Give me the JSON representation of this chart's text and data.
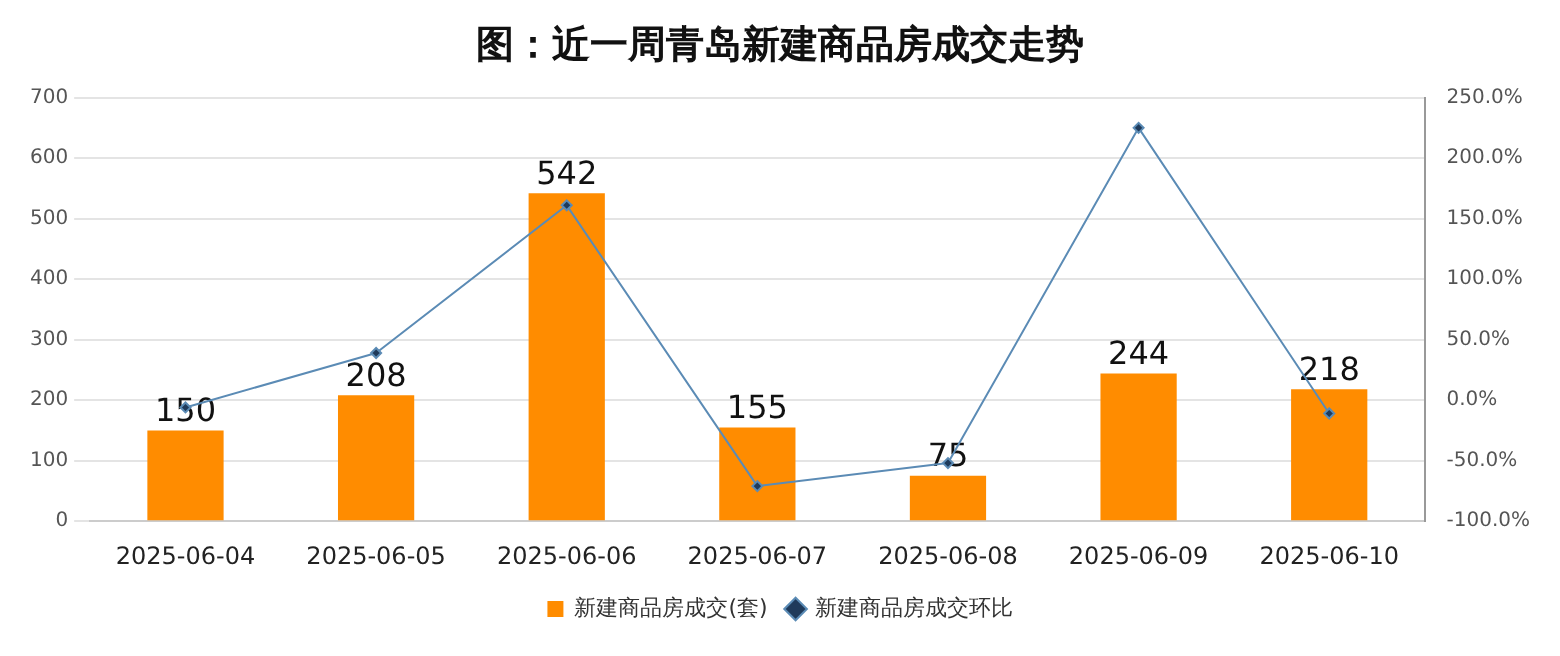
{
  "chart_data": {
    "type": "bar",
    "title": "图：近一周青岛新建商品房成交走势",
    "categories": [
      "2025-06-04",
      "2025-06-05",
      "2025-06-06",
      "2025-06-07",
      "2025-06-08",
      "2025-06-09",
      "2025-06-10"
    ],
    "series": [
      {
        "name": "新建商品房成交(套)",
        "color": "#ff8c00",
        "values": [
          150,
          208,
          542,
          155,
          75,
          244,
          218
        ],
        "value_labels": [
          "150",
          "208",
          "542",
          "155",
          "75",
          "244",
          "218"
        ]
      },
      {
        "name": "新建商品房成交环比",
        "type": "line",
        "axis": "y2",
        "color": "#5b8bb5",
        "marker": "diamond",
        "values": [
          -6,
          39,
          161,
          -71,
          -52,
          225,
          -11
        ]
      }
    ],
    "ylim": [
      0,
      700
    ],
    "yticks": [
      0,
      100,
      200,
      300,
      400,
      500,
      600,
      700
    ],
    "y2lim": [
      -100,
      250
    ],
    "y2ticks": [
      {
        "value": -100,
        "label": "-100.0%"
      },
      {
        "value": -50,
        "label": "-50.0%"
      },
      {
        "value": 0,
        "label": "0.0%"
      },
      {
        "value": 50,
        "label": "50.0%"
      },
      {
        "value": 100,
        "label": "100.0%"
      },
      {
        "value": 150,
        "label": "150.0%"
      },
      {
        "value": 200,
        "label": "200.0%"
      },
      {
        "value": 250,
        "label": "250.0%"
      }
    ],
    "grid": "y",
    "legend": "bottom"
  }
}
